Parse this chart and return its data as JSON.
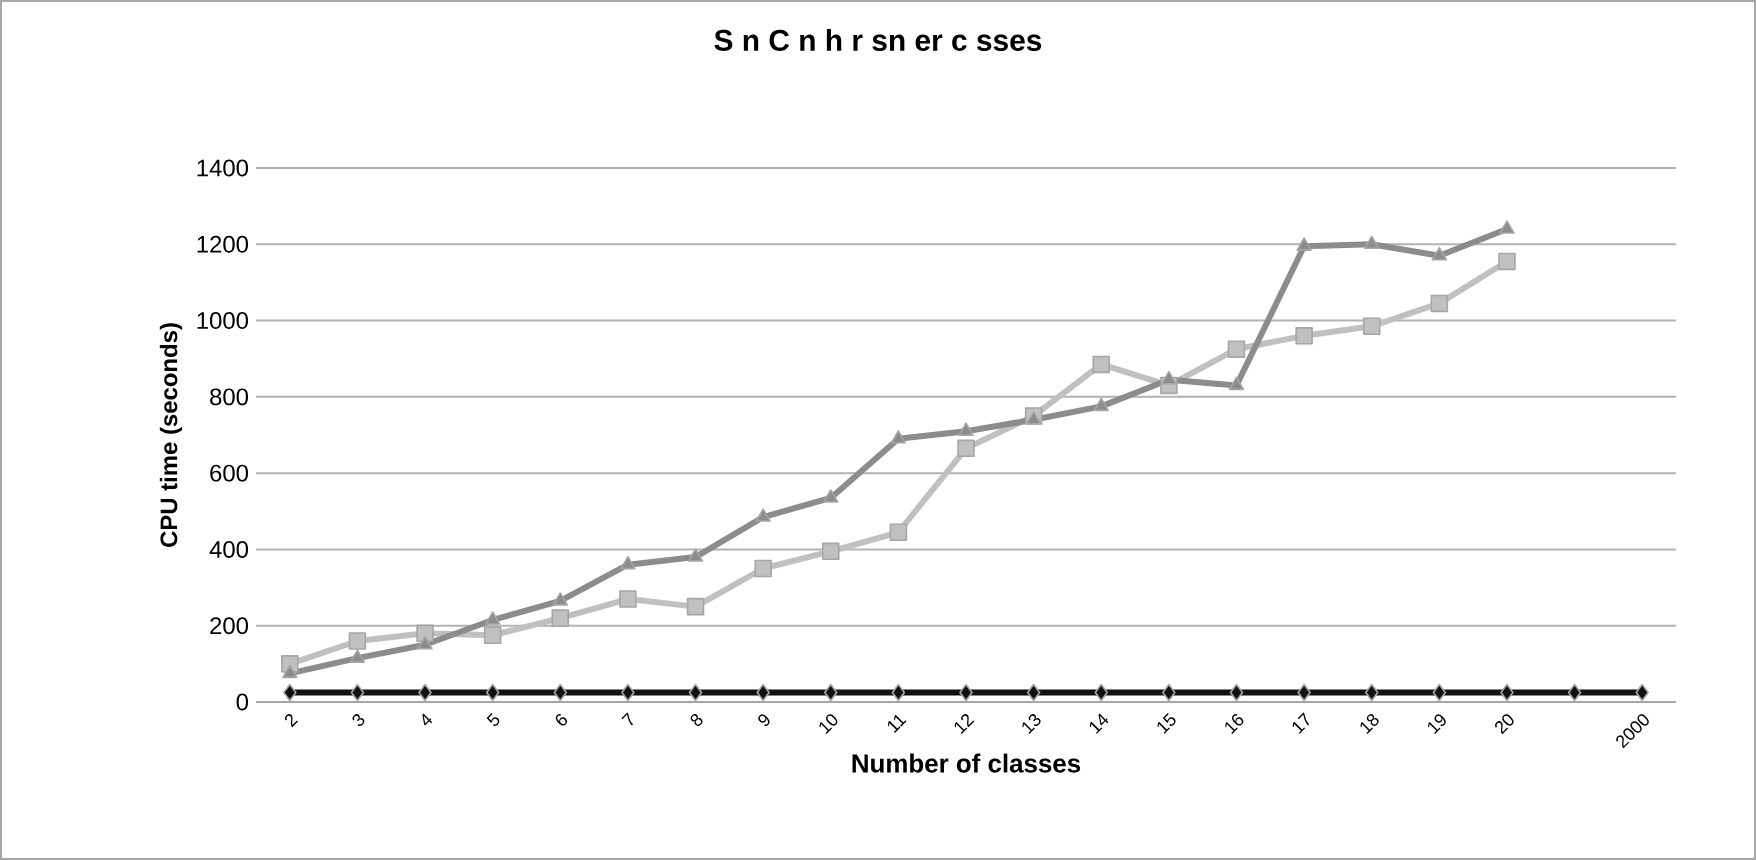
{
  "chart_data": {
    "type": "line",
    "title": "S n C n h r sn er c sses",
    "xlabel": "Number of classes",
    "ylabel": "CPU time (seconds)",
    "categories": [
      "2",
      "3",
      "4",
      "5",
      "6",
      "7",
      "8",
      "9",
      "10",
      "11",
      "12",
      "13",
      "14",
      "15",
      "16",
      "17",
      "18",
      "19",
      "20",
      null,
      "2000"
    ],
    "series": [
      {
        "color": "#111111",
        "marker": "diamond",
        "values": [
          25,
          25,
          25,
          25,
          25,
          25,
          25,
          25,
          25,
          25,
          25,
          25,
          25,
          25,
          25,
          25,
          25,
          25,
          25,
          25,
          25
        ]
      },
      {
        "color": "#c0c0c0",
        "marker": "square",
        "values": [
          100,
          160,
          180,
          175,
          220,
          270,
          250,
          350,
          395,
          445,
          665,
          750,
          885,
          830,
          925,
          960,
          985,
          1045,
          1155,
          null,
          null
        ]
      },
      {
        "color": "#8c8c8c",
        "marker": "triangle",
        "values": [
          75,
          115,
          150,
          215,
          265,
          360,
          380,
          485,
          535,
          690,
          710,
          740,
          775,
          845,
          830,
          1195,
          1200,
          1170,
          1240,
          null,
          null
        ]
      }
    ],
    "ylim": [
      0,
      1400
    ],
    "yticks": [
      0,
      200,
      400,
      600,
      800,
      1000,
      1200,
      1400
    ],
    "grid": "y",
    "line_style": "solid"
  }
}
